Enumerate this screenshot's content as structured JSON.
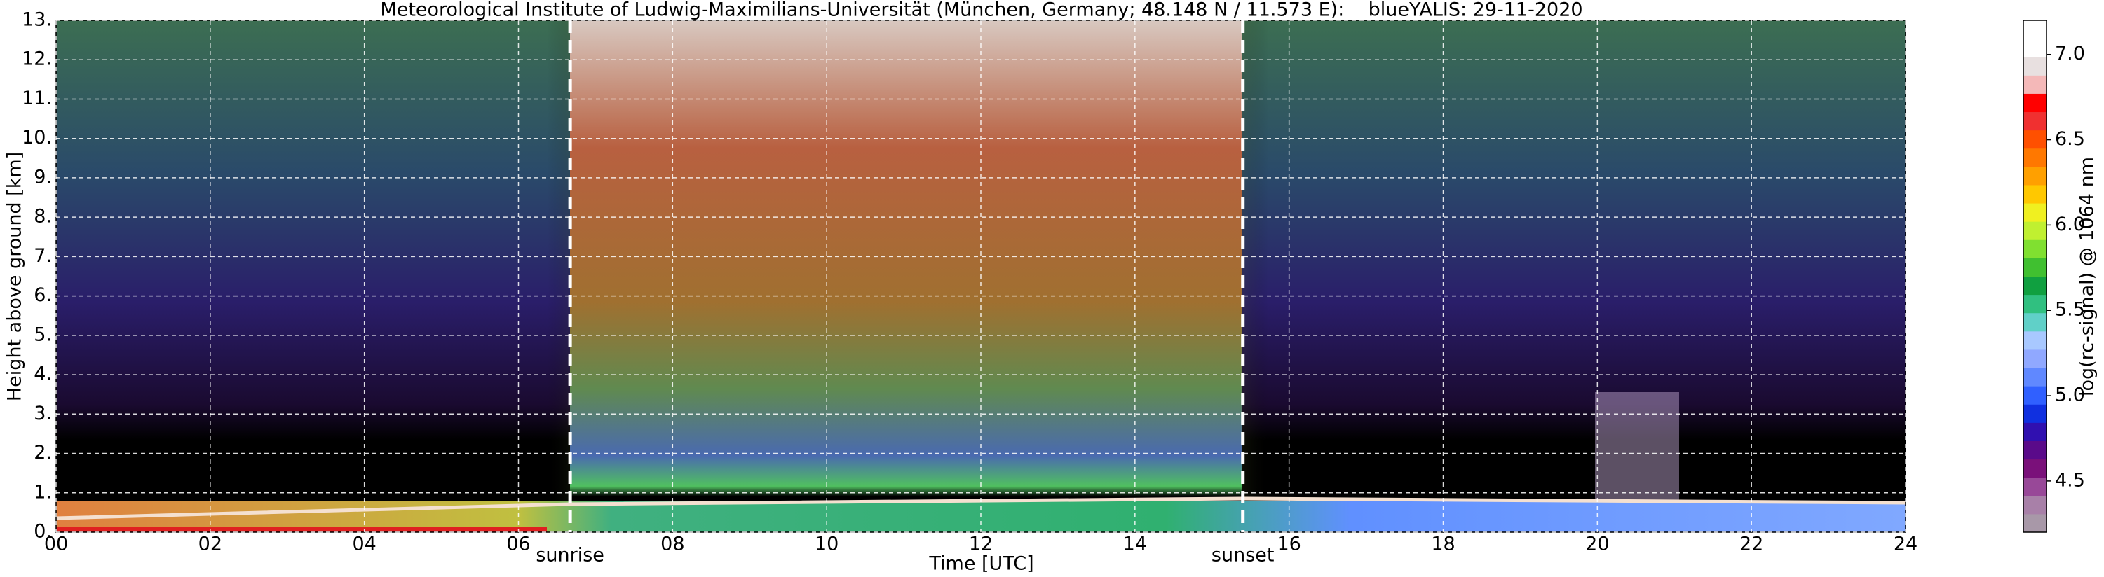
{
  "chart_data": {
    "type": "heatmap",
    "title": "Meteorological Institute of Ludwig-Maximilians-Universität (München, Germany; 48.148 N / 11.573 E):    blueYALIS: 29-11-2020",
    "xlabel": "Time [UTC]",
    "ylabel": "Height above ground [km]",
    "xlim": [
      0,
      24
    ],
    "ylim": [
      0,
      13
    ],
    "xticks": [
      {
        "value": 0,
        "label": "00"
      },
      {
        "value": 2,
        "label": "02"
      },
      {
        "value": 4,
        "label": "04"
      },
      {
        "value": 6,
        "label": "06"
      },
      {
        "value": 8,
        "label": "08"
      },
      10,
      12,
      14,
      16,
      18,
      20,
      22,
      24
    ],
    "yticks": [
      {
        "value": 0,
        "label": "0."
      },
      {
        "value": 1,
        "label": "1."
      },
      {
        "value": 2,
        "label": "2."
      },
      {
        "value": 3,
        "label": "3."
      },
      {
        "value": 4,
        "label": "4."
      },
      {
        "value": 5,
        "label": "5."
      },
      {
        "value": 6,
        "label": "6."
      },
      {
        "value": 7,
        "label": "7."
      },
      {
        "value": 8,
        "label": "8."
      },
      {
        "value": 9,
        "label": "9."
      },
      {
        "value": 10,
        "label": "10."
      },
      {
        "value": 11,
        "label": "11."
      },
      {
        "value": 12,
        "label": "12."
      },
      {
        "value": 13,
        "label": "13."
      }
    ],
    "grid": true,
    "annotations": [
      {
        "text": "sunrise",
        "x": 6.67
      },
      {
        "text": "sunset",
        "x": 15.4
      }
    ],
    "colorbar": {
      "label": "log(rc-signal) @ 1064 nm",
      "lim": [
        4.2,
        7.2
      ],
      "ticks": [
        4.5,
        {
          "value": 5,
          "label": "5.0"
        },
        5.5,
        {
          "value": 6,
          "label": "6.0"
        },
        6.5,
        {
          "value": 7,
          "label": "7.0"
        }
      ],
      "colors": [
        "#a898a8",
        "#a880a8",
        "#984898",
        "#7a107a",
        "#5a0a8a",
        "#3010b0",
        "#1030e0",
        "#3060ff",
        "#6088ff",
        "#90a8ff",
        "#a8c8ff",
        "#60d0c8",
        "#30c080",
        "#10a040",
        "#40c030",
        "#80e030",
        "#c0f030",
        "#f0f020",
        "#ffc800",
        "#ffa000",
        "#ff7800",
        "#ff5000",
        "#f03030",
        "#ff0000",
        "#f4b8b8",
        "#e8e0e0",
        "#ffffff",
        "#ffffff"
      ]
    }
  }
}
